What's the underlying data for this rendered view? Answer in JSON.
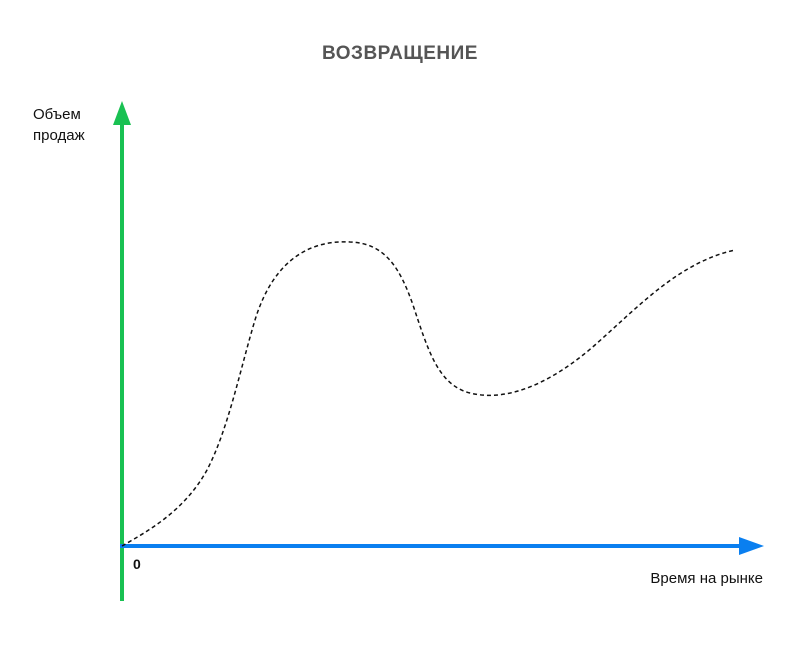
{
  "title": "ВОЗВРАЩЕНИЕ",
  "y_axis": {
    "label_line1": "Объем",
    "label_line2": "продаж",
    "color": "#19c152"
  },
  "x_axis": {
    "label": "Время на рынке",
    "color": "#0a7ff0"
  },
  "origin_label": "0",
  "curve": {
    "style": "dashed",
    "color": "#111111",
    "shape": "rise to a peak, sharp decline to a trough, then recovery to a second plateau"
  }
}
